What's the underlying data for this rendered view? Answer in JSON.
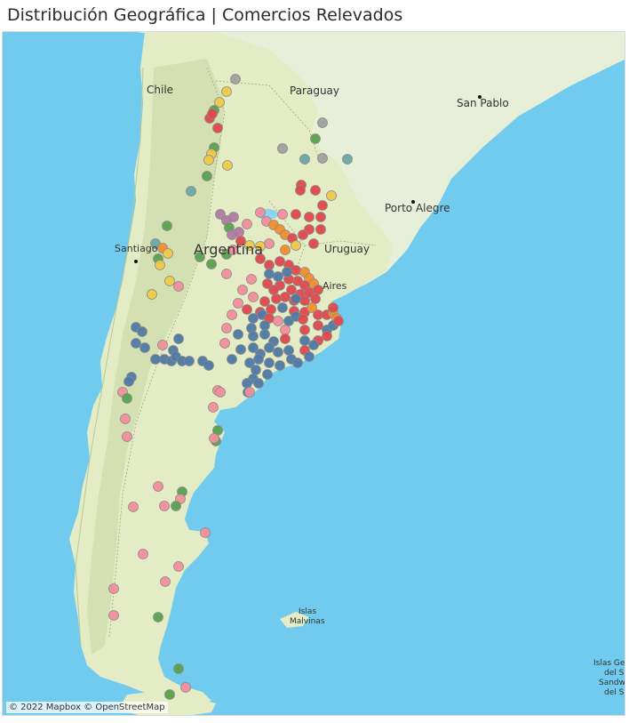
{
  "title": "Distribución Geográfica | Comercios Relevados",
  "map": {
    "labels": {
      "chile": "Chile",
      "paraguay": "Paraguay",
      "sao_paulo": "San Pablo",
      "porto_alegre": "Porto Alegre",
      "uruguay": "Uruguay",
      "argentina": "Argentina",
      "santiago": "Santiago",
      "buenos_aires": "Aires",
      "malvinas_1": "Islas",
      "malvinas_2": "Malvinas",
      "georgias_1": "Islas Ge",
      "georgias_2": "del S",
      "georgias_3": "Sandwi",
      "georgias_4": "del Su"
    },
    "attribution": "© 2022 Mapbox © OpenStreetMap",
    "colors": {
      "ocean": "#71cbee",
      "land_main": "#e3ecc5",
      "land_brazil": "#e8efd8",
      "andes": "#cfdcaa",
      "lake": "#8fd3f0"
    },
    "category_colors": {
      "red": "#e0474c",
      "blue": "#4e79a7",
      "pink": "#f28e9b",
      "green": "#59a14f",
      "yellow": "#edc948",
      "orange": "#f28e2b",
      "teal": "#6aa8a8",
      "purple": "#b07aa1",
      "gray": "#a0a0a0"
    }
  }
}
